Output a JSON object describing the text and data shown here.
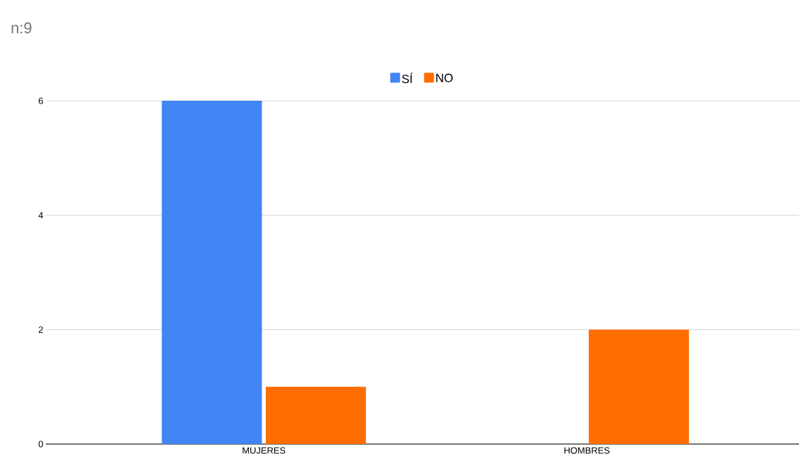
{
  "chart_data": {
    "type": "bar",
    "title": "n:9",
    "categories": [
      "MUJERES",
      "HOMBRES"
    ],
    "series": [
      {
        "name": "SÍ",
        "color": "#4285f4",
        "values": [
          6,
          0
        ]
      },
      {
        "name": "NO",
        "color": "#ff6d01",
        "values": [
          1,
          2
        ]
      }
    ],
    "ylim": [
      0,
      6
    ],
    "yticks": [
      0,
      2,
      4,
      6
    ],
    "grid": "y",
    "legend": "top"
  }
}
